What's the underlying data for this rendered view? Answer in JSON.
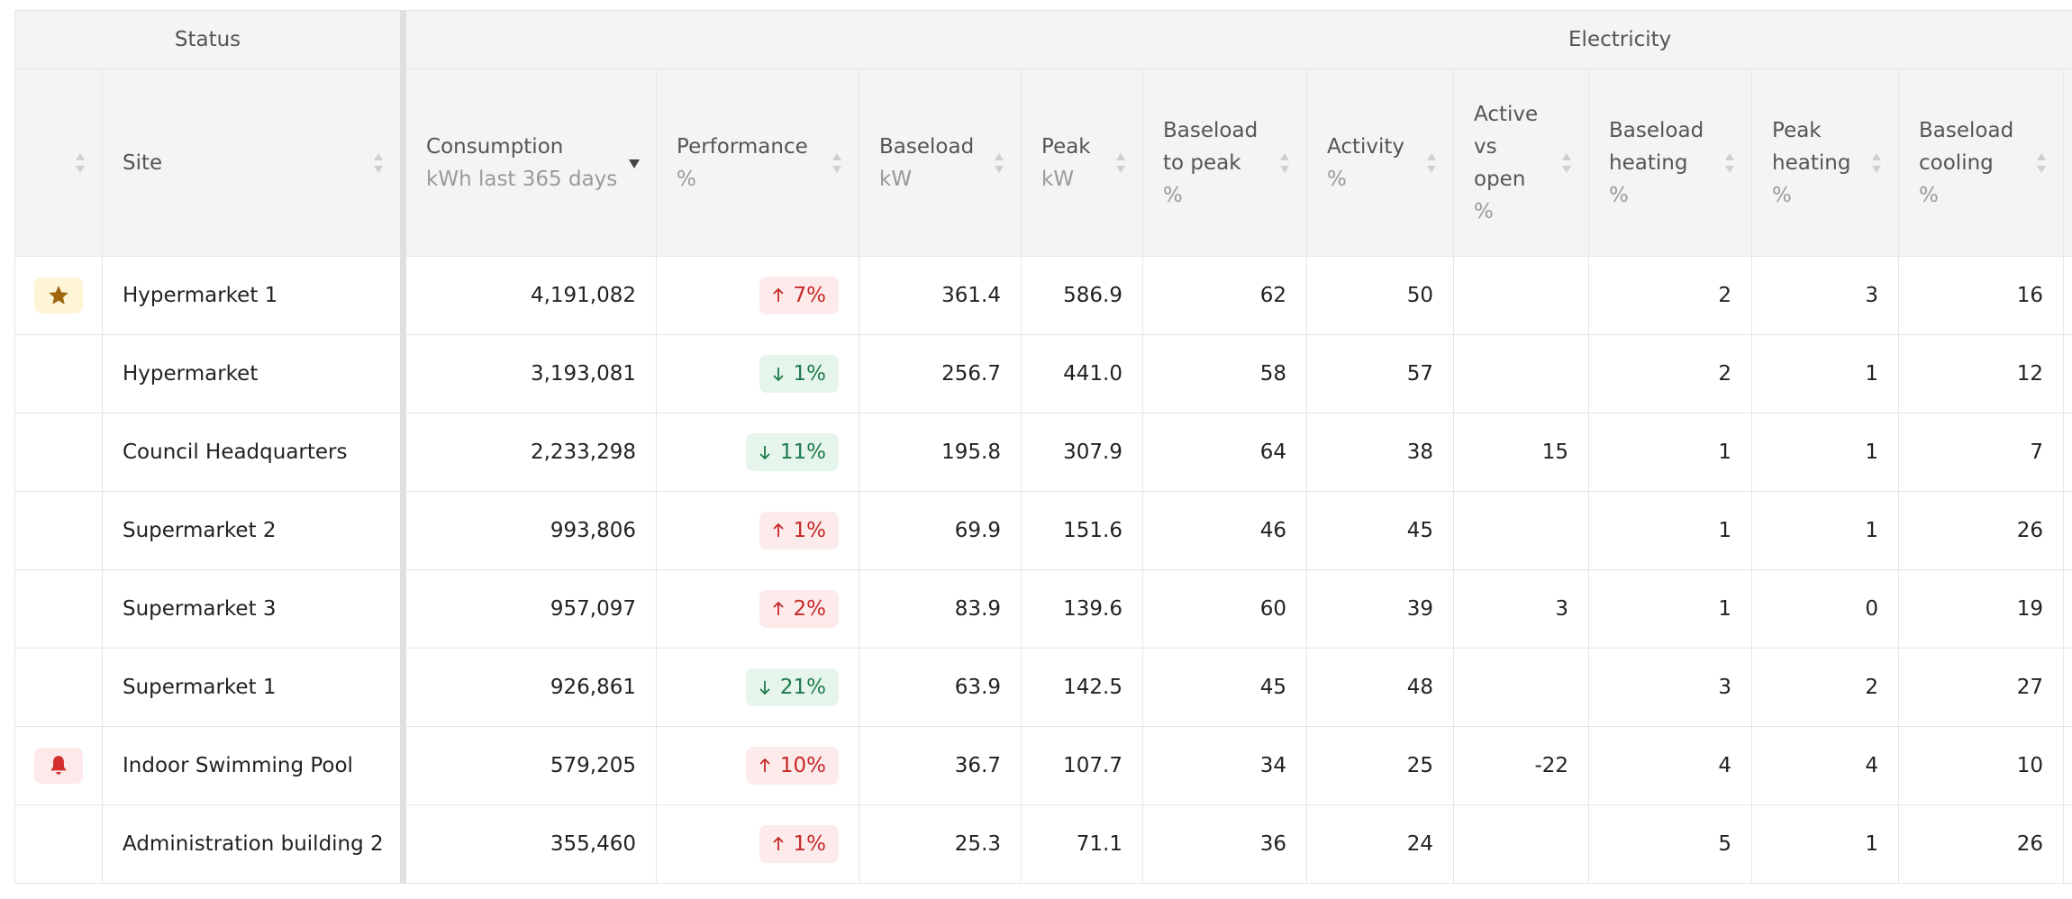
{
  "header_groups": [
    "Status",
    "Electricity"
  ],
  "columns": [
    {
      "name": "Site"
    },
    {
      "name": "Consumption",
      "unit": "kWh last 365 days",
      "sorted": "desc"
    },
    {
      "name": "Performance",
      "unit": "%"
    },
    {
      "name": "Baseload",
      "unit": "kW"
    },
    {
      "name": "Peak",
      "unit": "kW"
    },
    {
      "name": "Baseload to peak",
      "unit": "%"
    },
    {
      "name": "Activity",
      "unit": "%"
    },
    {
      "name": "Active vs open",
      "unit": "%"
    },
    {
      "name": "Baseload heating",
      "unit": "%"
    },
    {
      "name": "Peak heating",
      "unit": "%"
    },
    {
      "name": "Baseload cooling",
      "unit": "%"
    }
  ],
  "rows": [
    {
      "flag": "favorite",
      "cells": [
        "Hypermarket 1",
        "4,191,082",
        {
          "text": "7%",
          "trend": "up"
        },
        361.4,
        586.9,
        62,
        50,
        null,
        2,
        3,
        16
      ]
    },
    {
      "cells": [
        "Hypermarket",
        "3,193,081",
        {
          "text": "1%",
          "trend": "down"
        },
        256.7,
        "441.0",
        58,
        57,
        null,
        2,
        1,
        12
      ]
    },
    {
      "cells": [
        "Council Headquarters",
        "2,233,298",
        {
          "text": "11%",
          "trend": "down"
        },
        195.8,
        307.9,
        64,
        38,
        15,
        1,
        1,
        7
      ]
    },
    {
      "cells": [
        "Supermarket 2",
        "993,806",
        {
          "text": "1%",
          "trend": "up"
        },
        69.9,
        151.6,
        46,
        45,
        null,
        1,
        1,
        26
      ]
    },
    {
      "cells": [
        "Supermarket 3",
        "957,097",
        {
          "text": "2%",
          "trend": "up"
        },
        83.9,
        139.6,
        60,
        39,
        3,
        1,
        0,
        19
      ]
    },
    {
      "cells": [
        "Supermarket 1",
        "926,861",
        {
          "text": "21%",
          "trend": "down"
        },
        63.9,
        142.5,
        45,
        48,
        null,
        3,
        2,
        27
      ]
    },
    {
      "flag": "alert",
      "cells": [
        "Indoor Swimming Pool",
        "579,205",
        {
          "text": "10%",
          "trend": "up"
        },
        36.7,
        107.7,
        34,
        25,
        -22,
        4,
        4,
        10
      ]
    },
    {
      "cells": [
        "Administration building 2",
        "355,460",
        {
          "text": "1%",
          "trend": "up"
        },
        25.3,
        71.1,
        36,
        24,
        null,
        5,
        1,
        26
      ]
    }
  ]
}
